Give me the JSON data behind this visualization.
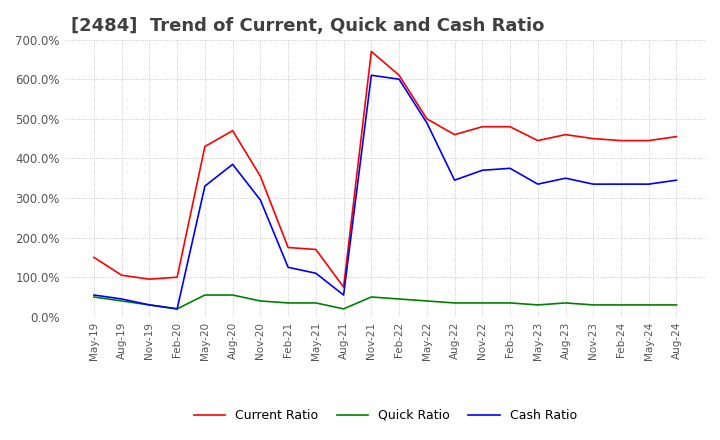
{
  "title": "[2484]  Trend of Current, Quick and Cash Ratio",
  "title_fontsize": 13,
  "ylim": [
    0,
    700
  ],
  "yticks": [
    0,
    100,
    200,
    300,
    400,
    500,
    600,
    700
  ],
  "background_color": "#ffffff",
  "grid_color": "#bbbbbb",
  "dates": [
    "May-19",
    "Aug-19",
    "Nov-19",
    "Feb-20",
    "May-20",
    "Aug-20",
    "Nov-20",
    "Feb-21",
    "May-21",
    "Aug-21",
    "Nov-21",
    "Feb-22",
    "May-22",
    "Aug-22",
    "Nov-22",
    "Feb-23",
    "May-23",
    "Aug-23",
    "Nov-23",
    "Feb-24",
    "May-24",
    "Aug-24"
  ],
  "current_ratio": [
    150,
    105,
    95,
    100,
    430,
    470,
    355,
    175,
    170,
    75,
    670,
    610,
    500,
    460,
    480,
    480,
    445,
    460,
    450,
    445,
    445,
    455
  ],
  "quick_ratio": [
    50,
    40,
    30,
    20,
    55,
    55,
    40,
    35,
    35,
    20,
    50,
    45,
    40,
    35,
    35,
    35,
    30,
    35,
    30,
    30,
    30,
    30
  ],
  "cash_ratio": [
    55,
    45,
    30,
    20,
    330,
    385,
    295,
    125,
    110,
    55,
    610,
    600,
    490,
    345,
    370,
    375,
    335,
    350,
    335,
    335,
    335,
    345
  ],
  "current_color": "#ff0000",
  "quick_color": "#008000",
  "cash_color": "#0000ff",
  "line_width": 1.2,
  "legend_labels": [
    "Current Ratio",
    "Quick Ratio",
    "Cash Ratio"
  ]
}
